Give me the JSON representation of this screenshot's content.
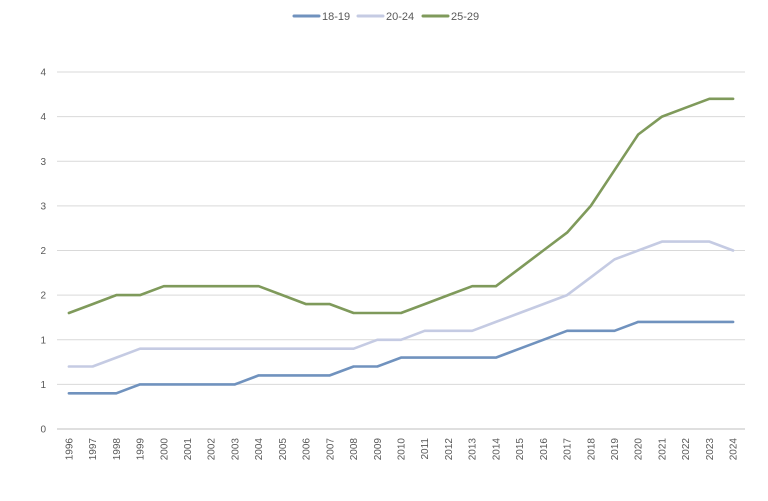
{
  "chart_data": {
    "type": "line",
    "title": "",
    "xlabel": "",
    "ylabel": "",
    "x": [
      "1996",
      "1997",
      "1998",
      "1999",
      "2000",
      "2001",
      "2002",
      "2003",
      "2004",
      "2005",
      "2006",
      "2007",
      "2008",
      "2009",
      "2010",
      "2011",
      "2012",
      "2013",
      "2014",
      "2015",
      "2016",
      "2017",
      "2018",
      "2019",
      "2020",
      "2021",
      "2022",
      "2023",
      "2024"
    ],
    "ylim": [
      0,
      4
    ],
    "y_tick_values": [
      0,
      0.5,
      1,
      1.5,
      2,
      2.5,
      3,
      3.5,
      4
    ],
    "y_tick_labels": [
      "0",
      "1",
      "1",
      "2",
      "2",
      "3",
      "3",
      "4",
      "4"
    ],
    "grid": true,
    "legend_position": "top",
    "series": [
      {
        "name": "18-19",
        "color": "#7092be",
        "values": [
          0.4,
          0.4,
          0.4,
          0.5,
          0.5,
          0.5,
          0.5,
          0.5,
          0.6,
          0.6,
          0.6,
          0.6,
          0.7,
          0.7,
          0.8,
          0.8,
          0.8,
          0.8,
          0.8,
          0.9,
          1.0,
          1.1,
          1.1,
          1.1,
          1.2,
          1.2,
          1.2,
          1.2,
          1.2
        ]
      },
      {
        "name": "20-24",
        "color": "#c5cbe3",
        "values": [
          0.7,
          0.7,
          0.8,
          0.9,
          0.9,
          0.9,
          0.9,
          0.9,
          0.9,
          0.9,
          0.9,
          0.9,
          0.9,
          1.0,
          1.0,
          1.1,
          1.1,
          1.1,
          1.2,
          1.3,
          1.4,
          1.5,
          1.7,
          1.9,
          2.0,
          2.1,
          2.1,
          2.1,
          2.0
        ]
      },
      {
        "name": "25-29",
        "color": "#7f9a5b",
        "values": [
          1.3,
          1.4,
          1.5,
          1.5,
          1.6,
          1.6,
          1.6,
          1.6,
          1.6,
          1.5,
          1.4,
          1.4,
          1.3,
          1.3,
          1.3,
          1.4,
          1.5,
          1.6,
          1.6,
          1.8,
          2.0,
          2.2,
          2.5,
          2.9,
          3.3,
          3.5,
          3.6,
          3.7,
          3.7
        ]
      }
    ]
  }
}
